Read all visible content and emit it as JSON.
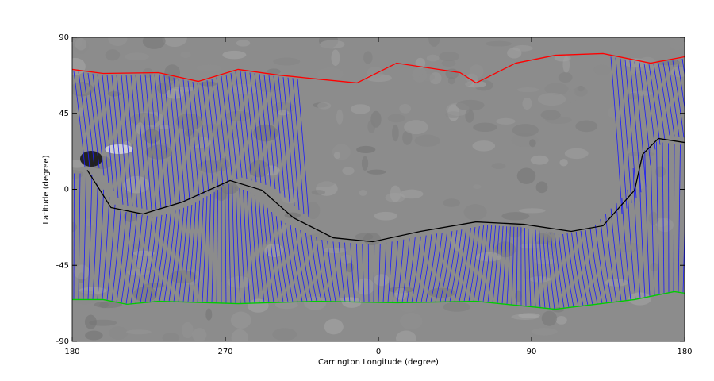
{
  "chart_data": {
    "type": "line",
    "xlabel": "Carrington Longitude (degree)",
    "ylabel": "Latitude (degree)",
    "xlim": [
      180,
      540
    ],
    "xticks": [
      {
        "value": 180,
        "label": "180"
      },
      {
        "value": 270,
        "label": "270"
      },
      {
        "value": 360,
        "label": "0"
      },
      {
        "value": 450,
        "label": "90"
      },
      {
        "value": 540,
        "label": "180"
      }
    ],
    "ylim": [
      -90,
      90
    ],
    "yticks": [
      -90,
      -45,
      0,
      45,
      90
    ],
    "series": [
      {
        "color": "#000000",
        "x": [
          188.9,
          202.8,
          221.5,
          244.8,
          272.8,
          291.5,
          310.1,
          333.4,
          356.7,
          384.7,
          417.4,
          445.3,
          473.3,
          492,
          510.6,
          515.3,
          524.6,
          540
        ],
        "values": [
          11.3,
          -10.8,
          -14.6,
          -7.5,
          5.2,
          -0.5,
          -16.9,
          -28.7,
          -31,
          -24.9,
          -19.3,
          -20.7,
          -24.9,
          -21.6,
          -0.5,
          20.7,
          30.1,
          27.7
        ]
      },
      {
        "color": "#ff0000",
        "x": [
          180,
          198.2,
          230.8,
          254.1,
          277.5,
          300.8,
          324.1,
          347.4,
          370.7,
          408,
          417.4,
          440.7,
          464,
          492,
          520,
          540
        ],
        "values": [
          71,
          68.6,
          69.1,
          63.9,
          71,
          67.7,
          65.3,
          63,
          74.7,
          69.1,
          63,
          74.7,
          79.4,
          80.4,
          74.7,
          78.5
        ]
      },
      {
        "color": "#00cc00",
        "x": [
          180,
          198.2,
          212.2,
          230.8,
          277.5,
          324.1,
          370.7,
          417.4,
          464,
          510.6,
          533.9,
          540
        ],
        "values": [
          -65.3,
          -65.3,
          -68.1,
          -66.3,
          -67.7,
          -66.3,
          -67.2,
          -66.3,
          -71,
          -65.3,
          -60.6,
          -61.5
        ]
      }
    ]
  }
}
